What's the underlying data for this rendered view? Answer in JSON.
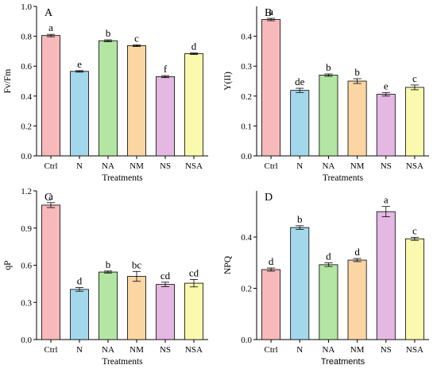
{
  "colors": {
    "Ctrl": "#f7b9b9",
    "N": "#a3d8ec",
    "NA": "#b3e6a3",
    "NM": "#fbd6a3",
    "NS": "#e4b8e2",
    "NSA": "#fafaae"
  },
  "chart_data": [
    {
      "type": "bar",
      "panel": "A",
      "categories": [
        "Ctrl",
        "N",
        "NA",
        "NM",
        "NS",
        "NSA"
      ],
      "values": [
        0.805,
        0.565,
        0.77,
        0.737,
        0.53,
        0.683
      ],
      "errors": [
        0.008,
        0.005,
        0.006,
        0.006,
        0.007,
        0.005
      ],
      "letters": [
        "a",
        "e",
        "b",
        "c",
        "f",
        "d"
      ],
      "ylabel": "Fv/Fm",
      "xlabel": "Treatments",
      "ylim": [
        0.0,
        1.0
      ],
      "yticks": [
        0.0,
        0.2,
        0.4,
        0.6,
        0.8,
        1.0
      ],
      "tick_labels": [
        "0.0",
        "0.2",
        "0.4",
        "0.6",
        "0.8",
        "1.0"
      ],
      "grid": false
    },
    {
      "type": "bar",
      "panel": "B",
      "categories": [
        "Ctrl",
        "N",
        "NA",
        "NM",
        "NS",
        "NSA"
      ],
      "values": [
        0.456,
        0.219,
        0.27,
        0.25,
        0.206,
        0.229
      ],
      "errors": [
        0.004,
        0.007,
        0.004,
        0.008,
        0.006,
        0.008
      ],
      "letters": [
        "a",
        "de",
        "b",
        "b",
        "e",
        "c"
      ],
      "ylabel": "Y(II)",
      "xlabel": "Treatments",
      "ylim": [
        0.0,
        0.5
      ],
      "yticks": [
        0.0,
        0.1,
        0.2,
        0.3,
        0.4
      ],
      "tick_labels": [
        "0.0",
        "0.1",
        "0.2",
        "0.3",
        "0.4"
      ],
      "grid": false
    },
    {
      "type": "bar",
      "panel": "C",
      "categories": [
        "Ctrl",
        "N",
        "NA",
        "NM",
        "NS",
        "NSA"
      ],
      "values": [
        1.085,
        0.405,
        0.545,
        0.51,
        0.445,
        0.455
      ],
      "errors": [
        0.02,
        0.015,
        0.008,
        0.04,
        0.018,
        0.03
      ],
      "letters": [
        "a",
        "d",
        "b",
        "bc",
        "cd",
        "cd"
      ],
      "ylabel": "qP",
      "xlabel": "Treatments",
      "ylim": [
        0.0,
        1.2
      ],
      "yticks": [
        0.0,
        0.3,
        0.6,
        0.9,
        1.2
      ],
      "tick_labels": [
        "0.0",
        "0.3",
        "0.6",
        "0.9",
        "1.2"
      ],
      "grid": false
    },
    {
      "type": "bar",
      "panel": "D",
      "categories": [
        "Ctrl",
        "N",
        "NA",
        "NM",
        "NS",
        "NSA"
      ],
      "values": [
        0.273,
        0.437,
        0.292,
        0.31,
        0.499,
        0.393
      ],
      "errors": [
        0.006,
        0.007,
        0.007,
        0.006,
        0.02,
        0.006
      ],
      "letters": [
        "d",
        "b",
        "d",
        "d",
        "a",
        "c"
      ],
      "ylabel": "NPQ",
      "xlabel": "Treatments",
      "ylim": [
        0.0,
        0.58
      ],
      "yticks": [
        0.0,
        0.2,
        0.4
      ],
      "tick_labels": [
        "0.0",
        "0.2",
        "0.4"
      ],
      "grid": false
    }
  ]
}
